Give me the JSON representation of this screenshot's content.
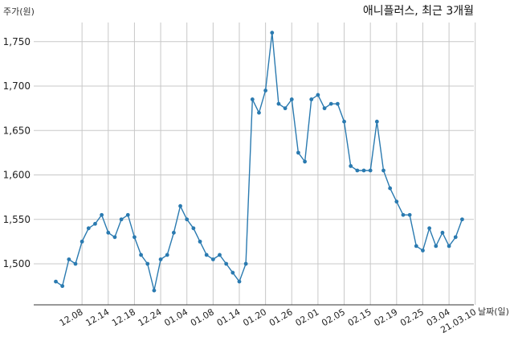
{
  "chart_data": {
    "type": "line",
    "title": "애니플러스, 최근 3개월",
    "xlabel": "날짜(일)",
    "ylabel": "주가(원)",
    "ylim": [
      1480,
      1760
    ],
    "yticks": [
      1500,
      1550,
      1600,
      1650,
      1700,
      1750
    ],
    "ytick_labels": [
      "1,500",
      "1,550",
      "1,600",
      "1,650",
      "1,700",
      "1,750"
    ],
    "xtick_labels": [
      "12.08",
      "12.14",
      "12.18",
      "12.24",
      "01.04",
      "01.08",
      "01.14",
      "01.20",
      "01.26",
      "02.01",
      "02.05",
      "02.15",
      "02.19",
      "02.25",
      "03.04",
      "21.03.10"
    ],
    "xtick_index": [
      4,
      8,
      12,
      16,
      20,
      24,
      28,
      32,
      36,
      40,
      44,
      48,
      52,
      56,
      60,
      64
    ],
    "grid": true,
    "series": [
      {
        "values": [
          1480,
          1475,
          1505,
          1500,
          1525,
          1540,
          1545,
          1555,
          1535,
          1530,
          1550,
          1555,
          1530,
          1510,
          1500,
          1470,
          1505,
          1510,
          1535,
          1565,
          1550,
          1540,
          1525,
          1510,
          1505,
          1510,
          1500,
          1490,
          1480,
          1500,
          1685,
          1670,
          1695,
          1760,
          1680,
          1675,
          1685,
          1625,
          1615,
          1685,
          1690,
          1675,
          1680,
          1680,
          1660,
          1610,
          1605,
          1605,
          1605,
          1660,
          1605,
          1585,
          1570,
          1555,
          1555,
          1520,
          1515,
          1540,
          1520,
          1535,
          1520,
          1530,
          1550
        ],
        "color": "#2a7ab0"
      }
    ]
  }
}
